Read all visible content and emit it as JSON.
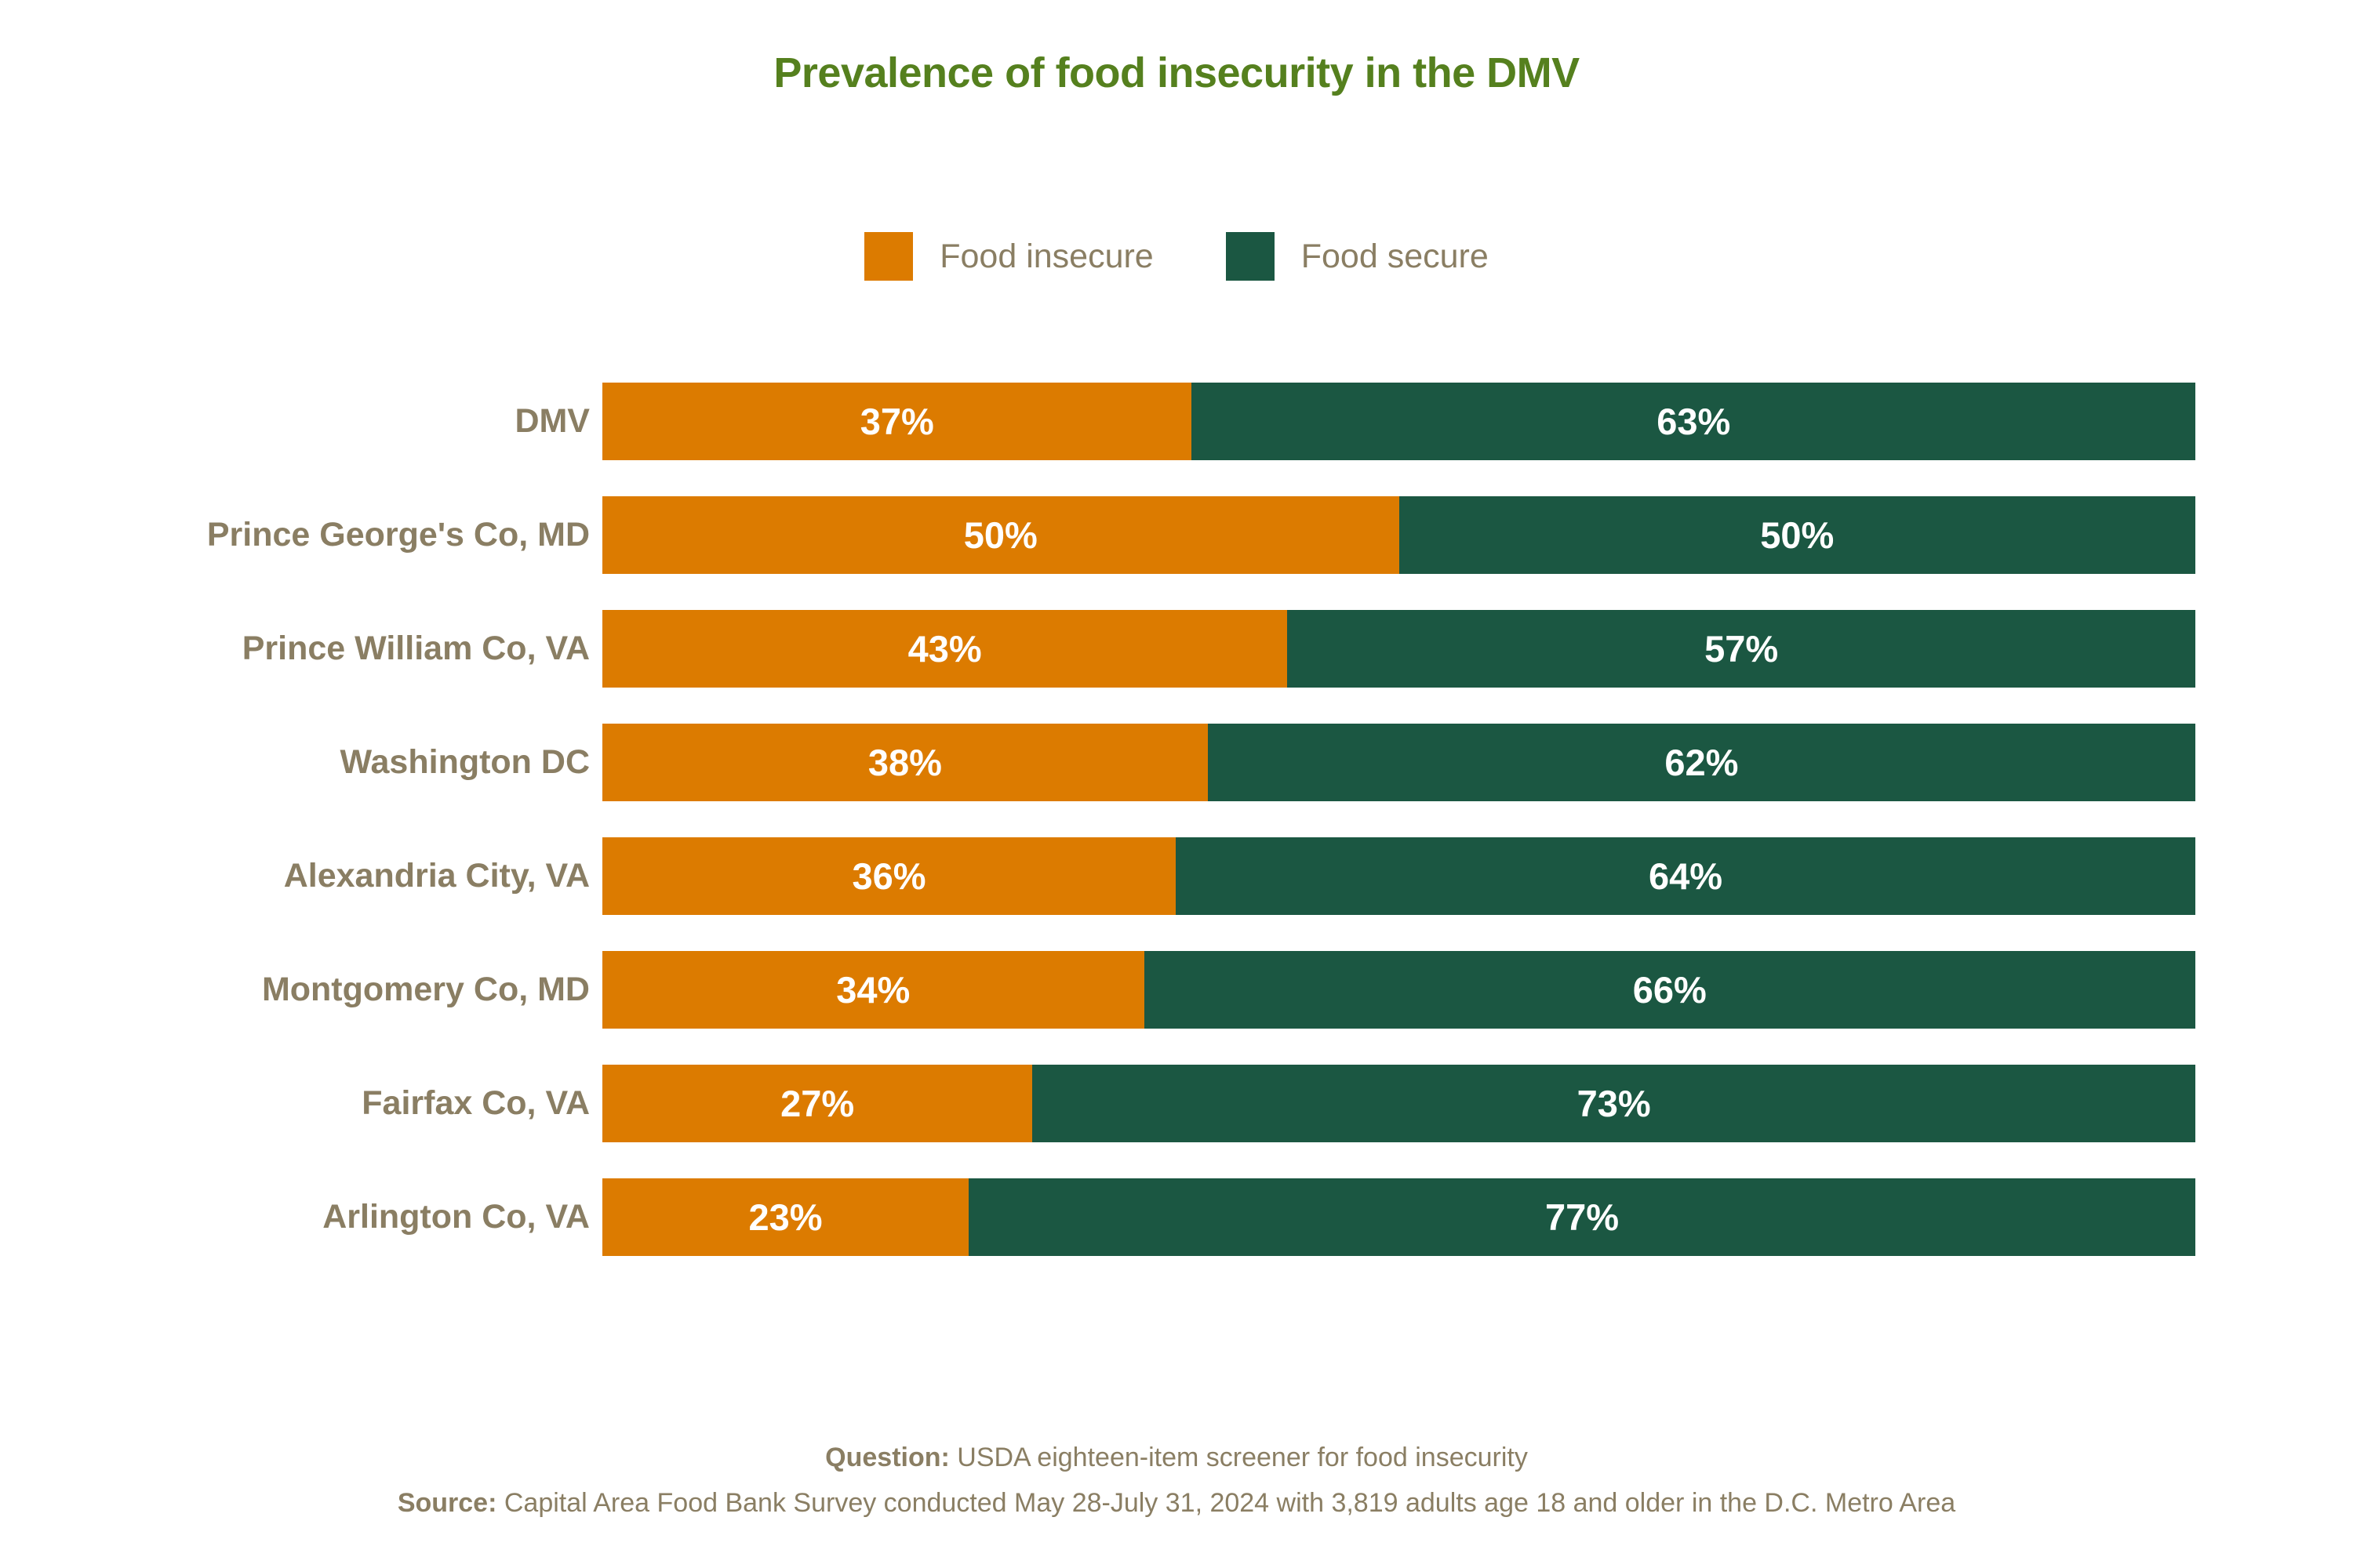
{
  "title": "Prevalence of food insecurity in the DMV",
  "legend": {
    "items": [
      {
        "label": "Food insecure",
        "color": "#DC7B00"
      },
      {
        "label": "Food secure",
        "color": "#1B5742"
      }
    ]
  },
  "chart_data": {
    "type": "bar",
    "orientation": "horizontal",
    "stacked": true,
    "title": "Prevalence of food insecurity in the DMV",
    "categories": [
      "DMV",
      "Prince George's Co, MD",
      "Prince William Co, VA",
      "Washington DC",
      "Alexandria City, VA",
      "Montgomery Co, MD",
      "Fairfax Co, VA",
      "Arlington Co, VA"
    ],
    "series": [
      {
        "name": "Food insecure",
        "color": "#DC7B00",
        "values": [
          37,
          50,
          43,
          38,
          36,
          34,
          27,
          23
        ]
      },
      {
        "name": "Food secure",
        "color": "#1B5742",
        "values": [
          63,
          50,
          57,
          62,
          64,
          66,
          73,
          77
        ]
      }
    ],
    "value_suffix": "%",
    "xlim": [
      0,
      100
    ],
    "grid": false,
    "legend_position": "top",
    "data_labels": "inside-center"
  },
  "footer": {
    "question_label": "Question:",
    "question_text": " USDA eighteen-item screener for food insecurity",
    "source_label": "Source:",
    "source_text": " Capital Area Food Bank Survey conducted May 28-July 31, 2024 with 3,819 adults age 18 and older in the D.C. Metro Area"
  },
  "colors": {
    "title": "#55801E",
    "text": "#8A7E63",
    "bar_value_text": "#FFFFFF",
    "background": "#FFFFFF"
  }
}
